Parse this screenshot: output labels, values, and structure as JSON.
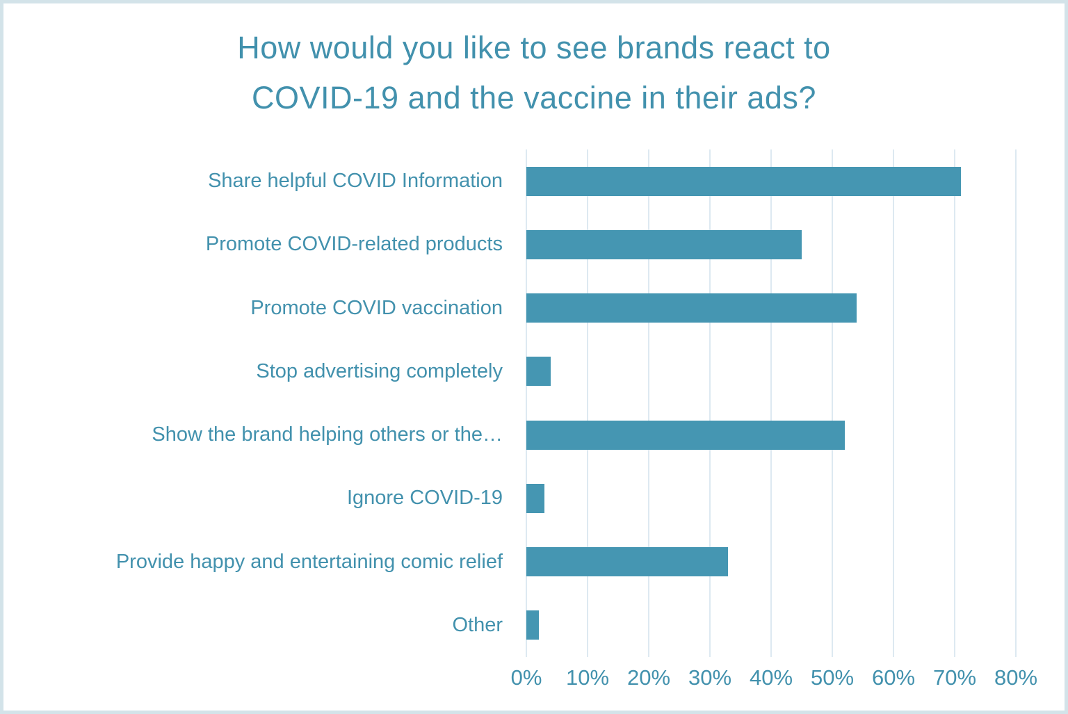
{
  "chart_data": {
    "type": "bar",
    "orientation": "horizontal",
    "title_line1": "How would you like to see brands react to",
    "title_line2": "COVID-19 and the vaccine in their ads?",
    "categories": [
      "Share helpful COVID Information",
      "Promote COVID-related products",
      "Promote COVID vaccination",
      "Stop advertising completely",
      "Show the brand helping others or the…",
      "Ignore COVID-19",
      "Provide happy and entertaining comic relief",
      "Other"
    ],
    "values": [
      71,
      45,
      54,
      4,
      52,
      3,
      33,
      2
    ],
    "unit": "%",
    "xlabel": "",
    "ylabel": "",
    "xlim": [
      0,
      80
    ],
    "x_ticks": [
      "0%",
      "10%",
      "20%",
      "30%",
      "40%",
      "50%",
      "60%",
      "70%",
      "80%"
    ],
    "grid": "vertical-on",
    "legend": "none",
    "colors": {
      "bar": "#4596b2",
      "text": "#4291ad",
      "gridline": "#dde9f1",
      "frame_border": "#d3e3e9",
      "background": "#ffffff"
    }
  }
}
